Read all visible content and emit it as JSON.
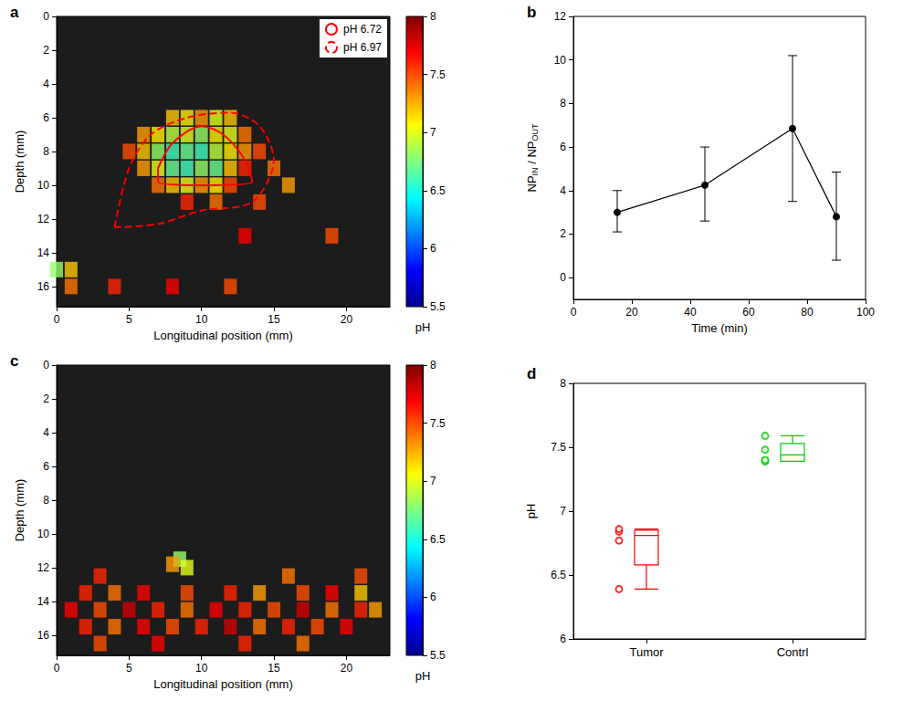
{
  "chart_data": [
    {
      "panel": "a",
      "type": "heatmap",
      "xlabel": "Longitudinal position (mm)",
      "ylabel": "Depth (mm)",
      "xlim": [
        0,
        23
      ],
      "xticks": [
        0,
        5,
        10,
        15,
        20
      ],
      "ylim": [
        0,
        17.2
      ],
      "yticks": [
        0,
        2,
        4,
        6,
        8,
        10,
        12,
        14,
        16
      ],
      "colorbar": {
        "label": "pH",
        "lim": [
          5.5,
          8
        ],
        "ticks": [
          5.5,
          6,
          6.5,
          7,
          7.5,
          8
        ]
      },
      "cells": [
        [
          8,
          6,
          7.2
        ],
        [
          9,
          6,
          7.1
        ],
        [
          10,
          6,
          7.3
        ],
        [
          11,
          6,
          7.0
        ],
        [
          12,
          6,
          7.2
        ],
        [
          6,
          7,
          7.3
        ],
        [
          7,
          7,
          7.1
        ],
        [
          8,
          7,
          6.9
        ],
        [
          9,
          7,
          7.0
        ],
        [
          10,
          7,
          6.8
        ],
        [
          11,
          7,
          7.1
        ],
        [
          12,
          7,
          7.0
        ],
        [
          13,
          7,
          7.4
        ],
        [
          5,
          8,
          7.5
        ],
        [
          6,
          8,
          7.2
        ],
        [
          7,
          8,
          6.8
        ],
        [
          8,
          8,
          6.6
        ],
        [
          9,
          8,
          6.7
        ],
        [
          10,
          8,
          6.6
        ],
        [
          11,
          8,
          6.9
        ],
        [
          12,
          8,
          7.1
        ],
        [
          13,
          8,
          7.3
        ],
        [
          14,
          8,
          7.5
        ],
        [
          6,
          9,
          7.3
        ],
        [
          7,
          9,
          7.0
        ],
        [
          8,
          9,
          6.7
        ],
        [
          9,
          9,
          6.6
        ],
        [
          10,
          9,
          6.8
        ],
        [
          11,
          9,
          6.7
        ],
        [
          12,
          9,
          7.2
        ],
        [
          13,
          9,
          7.6
        ],
        [
          15,
          9,
          7.4
        ],
        [
          7,
          10,
          7.4
        ],
        [
          8,
          10,
          7.2
        ],
        [
          9,
          10,
          7.0
        ],
        [
          10,
          10,
          7.3
        ],
        [
          11,
          10,
          7.1
        ],
        [
          12,
          10,
          7.5
        ],
        [
          16,
          10,
          7.3
        ],
        [
          9,
          11,
          7.6
        ],
        [
          11,
          11,
          7.4
        ],
        [
          14,
          11,
          7.5
        ],
        [
          19,
          13,
          7.5
        ],
        [
          13,
          13,
          7.7
        ],
        [
          0,
          15,
          6.8
        ],
        [
          1,
          15,
          7.2
        ],
        [
          1,
          16,
          7.4
        ],
        [
          4,
          16,
          7.6
        ],
        [
          8,
          16,
          7.7
        ],
        [
          12,
          16,
          7.5
        ]
      ],
      "regions": [
        {
          "name": "pH 6.72",
          "color": "#ff0000",
          "line_style": "solid",
          "points": [
            [
              7,
              9
            ],
            [
              8,
              7.5
            ],
            [
              10,
              6.5
            ],
            [
              11.5,
              7
            ],
            [
              13,
              8.5
            ],
            [
              13.5,
              9.8
            ],
            [
              10,
              10
            ],
            [
              7,
              9.8
            ],
            [
              7,
              9
            ]
          ]
        },
        {
          "name": "pH 6.97",
          "color": "#ff0000",
          "line_style": "dashed",
          "points": [
            [
              4,
              12.5
            ],
            [
              5,
              9
            ],
            [
              6.5,
              7
            ],
            [
              9,
              6
            ],
            [
              12,
              5.7
            ],
            [
              14,
              6.5
            ],
            [
              15,
              8.5
            ],
            [
              13.5,
              11
            ],
            [
              10,
              11.5
            ],
            [
              7,
              12.3
            ],
            [
              4,
              12.5
            ]
          ]
        }
      ],
      "legend": "top-right"
    },
    {
      "panel": "b",
      "type": "line",
      "xlabel": "Time (min)",
      "ylabel_parts": [
        {
          "text": "NP"
        },
        {
          "text": "IN",
          "sub": true
        },
        {
          "text": " / NP"
        },
        {
          "text": "OUT",
          "sub": true
        }
      ],
      "x": [
        15,
        45,
        75,
        90
      ],
      "values": [
        3.0,
        4.25,
        6.85,
        2.8
      ],
      "error_low": [
        2.1,
        2.6,
        3.5,
        0.8
      ],
      "error_high": [
        4.0,
        6.0,
        10.2,
        4.85
      ],
      "color": "#000000",
      "marker": "circle",
      "xlim": [
        0,
        100
      ],
      "xticks": [
        0,
        20,
        40,
        60,
        80,
        100
      ],
      "ylim": [
        -1,
        12
      ],
      "yticks": [
        0,
        2,
        4,
        6,
        8,
        10,
        12
      ]
    },
    {
      "panel": "c",
      "type": "heatmap",
      "xlabel": "Longitudinal position (mm)",
      "ylabel": "Depth (mm)",
      "xlim": [
        0,
        23
      ],
      "xticks": [
        0,
        5,
        10,
        15,
        20
      ],
      "ylim": [
        0,
        17.2
      ],
      "yticks": [
        0,
        2,
        4,
        6,
        8,
        10,
        12,
        14,
        16
      ],
      "colorbar": {
        "label": "pH",
        "lim": [
          5.5,
          8
        ],
        "ticks": [
          5.5,
          6,
          6.5,
          7,
          7.5,
          8
        ]
      },
      "cells": [
        [
          8.5,
          11.5,
          6.8
        ],
        [
          9,
          12,
          7.0
        ],
        [
          8,
          11.8,
          7.3
        ],
        [
          3,
          12.5,
          7.6
        ],
        [
          16,
          12.5,
          7.4
        ],
        [
          21,
          12.5,
          7.5
        ],
        [
          2,
          13.5,
          7.6
        ],
        [
          4,
          13.5,
          7.4
        ],
        [
          6,
          13.5,
          7.7
        ],
        [
          9,
          13.5,
          7.5
        ],
        [
          12,
          13.5,
          7.6
        ],
        [
          14,
          13.5,
          7.3
        ],
        [
          17,
          13.5,
          7.5
        ],
        [
          19,
          13.5,
          7.7
        ],
        [
          21,
          13.5,
          7.2
        ],
        [
          1,
          14.5,
          7.7
        ],
        [
          3,
          14.5,
          7.5
        ],
        [
          5,
          14.5,
          7.8
        ],
        [
          7,
          14.5,
          7.6
        ],
        [
          9,
          14.5,
          7.4
        ],
        [
          11,
          14.5,
          7.7
        ],
        [
          13,
          14.5,
          7.6
        ],
        [
          15,
          14.5,
          7.5
        ],
        [
          17,
          14.5,
          7.8
        ],
        [
          19,
          14.5,
          7.4
        ],
        [
          21,
          14.5,
          7.6
        ],
        [
          22,
          14.5,
          7.3
        ],
        [
          2,
          15.5,
          7.6
        ],
        [
          4,
          15.5,
          7.4
        ],
        [
          6,
          15.5,
          7.7
        ],
        [
          8,
          15.5,
          7.5
        ],
        [
          10,
          15.5,
          7.6
        ],
        [
          12,
          15.5,
          7.8
        ],
        [
          14,
          15.5,
          7.4
        ],
        [
          16,
          15.5,
          7.6
        ],
        [
          18,
          15.5,
          7.5
        ],
        [
          20,
          15.5,
          7.7
        ],
        [
          3,
          16.5,
          7.5
        ],
        [
          7,
          16.5,
          7.7
        ],
        [
          13,
          16.5,
          7.6
        ],
        [
          17,
          16.5,
          7.4
        ]
      ]
    },
    {
      "panel": "d",
      "type": "boxplot",
      "ylabel": "pH",
      "categories": [
        "Tumor",
        "Contrl"
      ],
      "colors": [
        "#ff0000",
        "#00cc00"
      ],
      "box_stats": [
        [
          6.39,
          6.58,
          6.81,
          6.85,
          6.86
        ],
        [
          7.39,
          7.39,
          7.44,
          7.53,
          7.59
        ]
      ],
      "points": [
        [
          6.39,
          6.77,
          6.84,
          6.86
        ],
        [
          7.39,
          7.4,
          7.48,
          7.59
        ]
      ],
      "marker": "circle",
      "ylim": [
        6,
        8
      ],
      "yticks": [
        6,
        6.5,
        7,
        7.5,
        8
      ]
    }
  ]
}
